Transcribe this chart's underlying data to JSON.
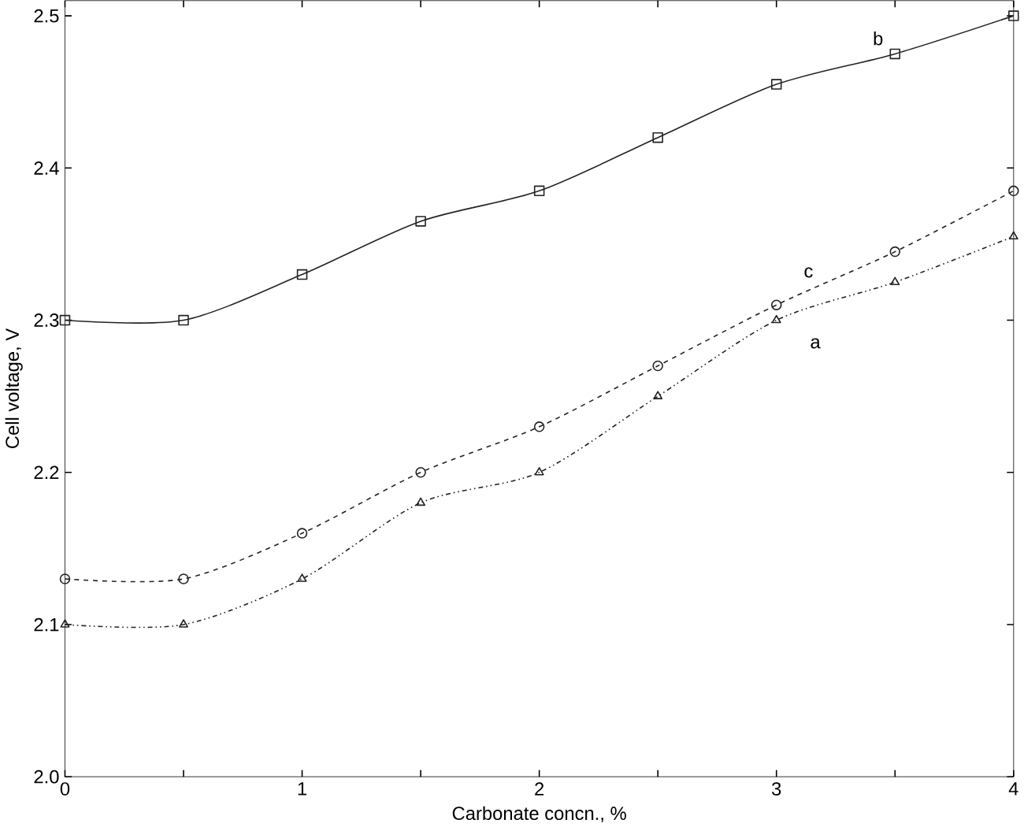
{
  "chart_data": {
    "type": "line",
    "xlabel": "Carbonate concn., %",
    "ylabel": "Cell voltage, V",
    "xlim": [
      0,
      4
    ],
    "ylim": [
      2.0,
      2.51
    ],
    "xticks": [
      0,
      {
        "value": 0.5,
        "label": null
      },
      1,
      {
        "value": 1.5,
        "label": null
      },
      2,
      {
        "value": 2.5,
        "label": null
      },
      3,
      {
        "value": 3.5,
        "label": null
      },
      4
    ],
    "yticks": [
      {
        "value": 2.0,
        "label": "2.0"
      },
      2.1,
      2.2,
      2.3,
      2.4,
      2.5
    ],
    "x": [
      0,
      0.5,
      1,
      1.5,
      2,
      2.5,
      3,
      3.5,
      4
    ],
    "series": [
      {
        "name": "b",
        "color": "#222222",
        "marker": "square",
        "line_style": "solid",
        "values": [
          2.3,
          2.3,
          2.33,
          2.365,
          2.385,
          2.42,
          2.455,
          2.475,
          2.5
        ]
      },
      {
        "name": "c",
        "color": "#222222",
        "marker": "circle",
        "line_style": "dashed",
        "values": [
          2.13,
          2.13,
          2.16,
          2.2,
          2.23,
          2.27,
          2.31,
          2.345,
          2.385
        ]
      },
      {
        "name": "a",
        "color": "#222222",
        "marker": "triangle",
        "line_style": "dotted",
        "values": [
          2.1,
          2.1,
          2.13,
          2.18,
          2.2,
          2.25,
          2.3,
          2.325,
          2.355
        ]
      }
    ]
  }
}
